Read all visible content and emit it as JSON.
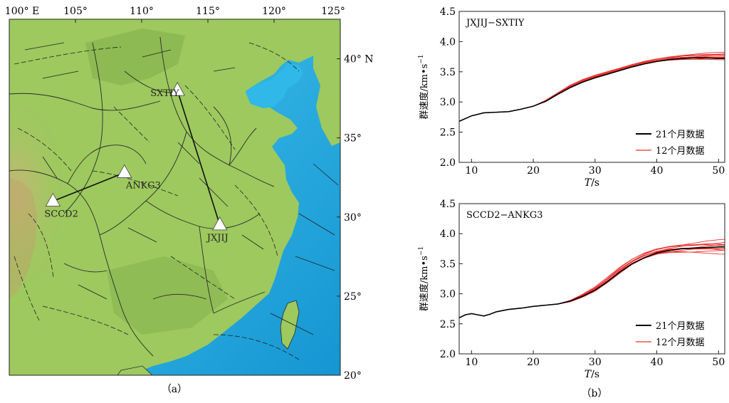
{
  "map": {
    "caption": "（a）",
    "top_ticks": [
      "100° E",
      "105°",
      "110°",
      "115°",
      "120°",
      "125°"
    ],
    "right_ticks": [
      "40° N",
      "35°",
      "30°",
      "25°",
      "20°"
    ],
    "lon_range": [
      100,
      125
    ],
    "lat_range": [
      20,
      42.5
    ],
    "colors": {
      "land": "#9dc95e",
      "land_dark": "#7aa844",
      "sea": "#2fb8e8",
      "sea_deep": "#1a9bd6",
      "mountain": "#c9b27a",
      "border": "#2a2a2a"
    },
    "stations": [
      {
        "name": "SXTIY",
        "lon": 112.7,
        "lat": 38.0
      },
      {
        "name": "ANKG3",
        "lon": 108.7,
        "lat": 32.8
      },
      {
        "name": "SCCD2",
        "lon": 103.3,
        "lat": 31.0
      },
      {
        "name": "JXJIJ",
        "lon": 115.9,
        "lat": 29.5
      }
    ],
    "paths": [
      [
        "SXTIY",
        "JXJIJ"
      ],
      [
        "SCCD2",
        "ANKG3"
      ]
    ]
  },
  "panel_caption": "（b）",
  "chart_data": [
    {
      "type": "line",
      "title": "JXJIJ−SXTIY",
      "xlabel_italic": "T",
      "xlabel_rest": "/s",
      "ylabel": "群速度/km•s",
      "ylabel_sup": "−1",
      "xlim": [
        8,
        51
      ],
      "ylim": [
        2.0,
        4.5
      ],
      "xticks": [
        10,
        20,
        30,
        40,
        50
      ],
      "yticks": [
        "2.0",
        "2.5",
        "3.0",
        "3.5",
        "4.0",
        "4.5"
      ],
      "legend_position": "lower-right",
      "series": [
        {
          "name": "21个月数据",
          "color": "#000000",
          "x": [
            8,
            10,
            12,
            14,
            16,
            18,
            20,
            22,
            24,
            26,
            28,
            30,
            32,
            34,
            36,
            38,
            40,
            42,
            44,
            46,
            48,
            50,
            51
          ],
          "y": [
            2.68,
            2.77,
            2.82,
            2.83,
            2.84,
            2.88,
            2.93,
            3.01,
            3.13,
            3.24,
            3.33,
            3.4,
            3.46,
            3.52,
            3.58,
            3.63,
            3.67,
            3.7,
            3.72,
            3.73,
            3.73,
            3.72,
            3.72
          ]
        },
        {
          "name": "12个月数据",
          "color": "#e8302c",
          "count": 10,
          "x": [
            8,
            10,
            12,
            14,
            16,
            18,
            20,
            22,
            24,
            26,
            28,
            30,
            32,
            34,
            36,
            38,
            40,
            42,
            44,
            46,
            48,
            50,
            51
          ],
          "y": [
            2.68,
            2.77,
            2.82,
            2.83,
            2.84,
            2.88,
            2.93,
            3.02,
            3.14,
            3.26,
            3.35,
            3.42,
            3.48,
            3.54,
            3.6,
            3.65,
            3.69,
            3.72,
            3.74,
            3.75,
            3.76,
            3.76,
            3.76
          ],
          "spread_x": [
            20,
            26,
            34,
            40,
            46,
            51
          ],
          "spread_y": [
            0.0,
            0.03,
            0.02,
            0.03,
            0.05,
            0.06
          ]
        }
      ]
    },
    {
      "type": "line",
      "title": "SCCD2−ANKG3",
      "xlabel_italic": "T",
      "xlabel_rest": "/s",
      "ylabel": "群速度/km•s",
      "ylabel_sup": "−1",
      "xlim": [
        8,
        51
      ],
      "ylim": [
        2.0,
        4.5
      ],
      "xticks": [
        10,
        20,
        30,
        40,
        50
      ],
      "yticks": [
        "2.0",
        "2.5",
        "3.0",
        "3.5",
        "4.0",
        "4.5"
      ],
      "legend_position": "lower-right",
      "series": [
        {
          "name": "21个月数据",
          "color": "#000000",
          "x": [
            8,
            9,
            10,
            11,
            12,
            13,
            14,
            16,
            18,
            20,
            22,
            24,
            26,
            28,
            30,
            32,
            34,
            36,
            38,
            40,
            42,
            44,
            46,
            48,
            50,
            51
          ],
          "y": [
            2.6,
            2.65,
            2.67,
            2.65,
            2.63,
            2.66,
            2.7,
            2.74,
            2.76,
            2.79,
            2.81,
            2.83,
            2.88,
            2.96,
            3.06,
            3.2,
            3.36,
            3.5,
            3.6,
            3.68,
            3.72,
            3.75,
            3.76,
            3.77,
            3.78,
            3.78
          ]
        },
        {
          "name": "12个月数据",
          "color": "#e8302c",
          "count": 10,
          "x": [
            8,
            9,
            10,
            11,
            12,
            13,
            14,
            16,
            18,
            20,
            22,
            24,
            26,
            28,
            30,
            32,
            34,
            36,
            38,
            40,
            42,
            44,
            46,
            48,
            50,
            51
          ],
          "y": [
            2.6,
            2.65,
            2.67,
            2.65,
            2.63,
            2.66,
            2.7,
            2.74,
            2.76,
            2.79,
            2.81,
            2.83,
            2.88,
            2.97,
            3.08,
            3.23,
            3.39,
            3.53,
            3.63,
            3.7,
            3.74,
            3.76,
            3.77,
            3.78,
            3.78,
            3.78
          ],
          "spread_x": [
            24,
            28,
            34,
            40,
            46,
            51
          ],
          "spread_y": [
            0.0,
            0.03,
            0.05,
            0.06,
            0.09,
            0.12
          ]
        }
      ]
    }
  ]
}
